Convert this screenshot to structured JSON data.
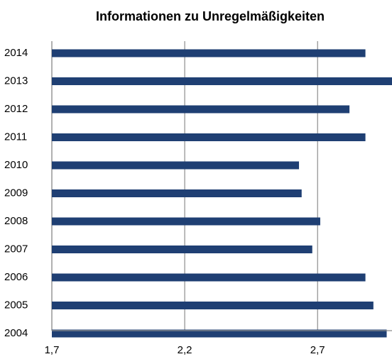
{
  "chart_data": {
    "type": "bar",
    "orientation": "horizontal",
    "title": "Informationen zu Unregelmäßigkeiten",
    "categories": [
      "2004",
      "2005",
      "2006",
      "2007",
      "2008",
      "2009",
      "2010",
      "2011",
      "2012",
      "2013",
      "2014"
    ],
    "values": [
      2.96,
      2.91,
      2.88,
      2.68,
      2.71,
      2.64,
      2.63,
      2.88,
      2.82,
      2.98,
      2.88
    ],
    "color": "#1f3f73",
    "xlim": [
      1.7,
      2.98
    ],
    "xticks": [
      {
        "value": 1.7,
        "label": "1,7"
      },
      {
        "value": 2.2,
        "label": "2,2"
      },
      {
        "value": 2.7,
        "label": "2,7"
      }
    ],
    "grid": true
  }
}
